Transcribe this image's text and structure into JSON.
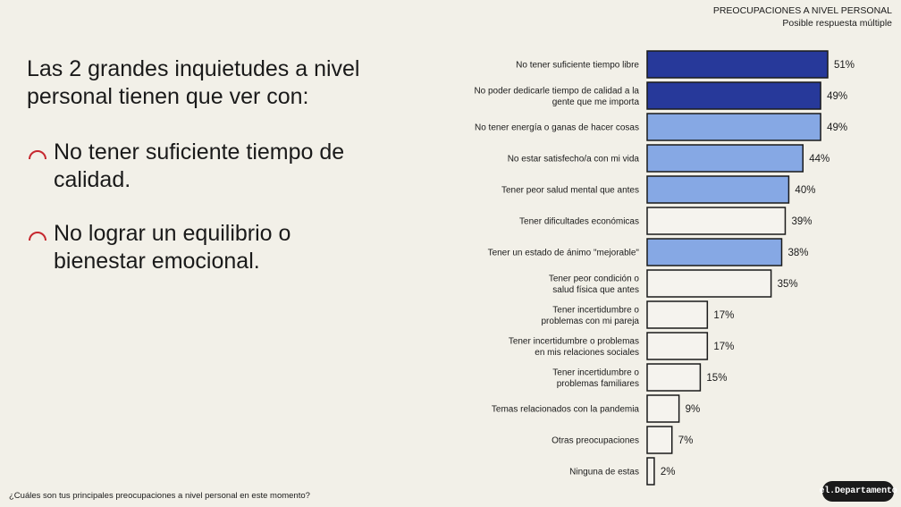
{
  "header": {
    "title": "PREOCUPACIONES A NIVEL PERSONAL",
    "subtitle": "Posible respuesta múltiple"
  },
  "headline": "Las 2 grandes inquietudes a nivel personal tienen que ver con:",
  "points": [
    "No tener suficiente tiempo de calidad.",
    "No lograr un equilibrio o bienestar emocional."
  ],
  "question": "¿Cuáles son tus principales preocupaciones a nivel personal en este momento?",
  "logo": "el.Departamento",
  "colors": {
    "background": "#f2f0e8",
    "dark_bar": "#27399a",
    "light_bar": "#86a8e4",
    "plain_bar": "#f5f3ee",
    "accent_arc": "#c6282f",
    "outline": "#1a1a1a"
  },
  "chart_data": {
    "type": "bar",
    "orientation": "horizontal",
    "categories": [
      "No tener suficiente tiempo libre",
      "No poder dedicarle tiempo de calidad a la\ngente que me importa",
      "No tener energía o ganas de hacer cosas",
      "No estar satisfecho/a con mi vida",
      "Tener peor salud mental que antes",
      "Tener dificultades económicas",
      "Tener un estado de ánimo \"mejorable\"",
      "Tener peor condición o\nsalud física que antes",
      "Tener incertidumbre o\nproblemas con mi pareja",
      "Tener incertidumbre o problemas\nen mis relaciones sociales",
      "Tener incertidumbre o\nproblemas familiares",
      "Temas relacionados con la pandemia",
      "Otras preocupaciones",
      "Ninguna de estas"
    ],
    "values": [
      51,
      49,
      49,
      44,
      40,
      39,
      38,
      35,
      17,
      17,
      15,
      9,
      7,
      2
    ],
    "value_labels": [
      "51%",
      "49%",
      "49%",
      "44%",
      "40%",
      "39%",
      "38%",
      "35%",
      "17%",
      "17%",
      "15%",
      "9%",
      "7%",
      "2%"
    ],
    "highlight": [
      "dark",
      "dark",
      "light",
      "light",
      "light",
      "none",
      "light",
      "none",
      "none",
      "none",
      "none",
      "none",
      "none",
      "none"
    ],
    "unit": "%"
  }
}
